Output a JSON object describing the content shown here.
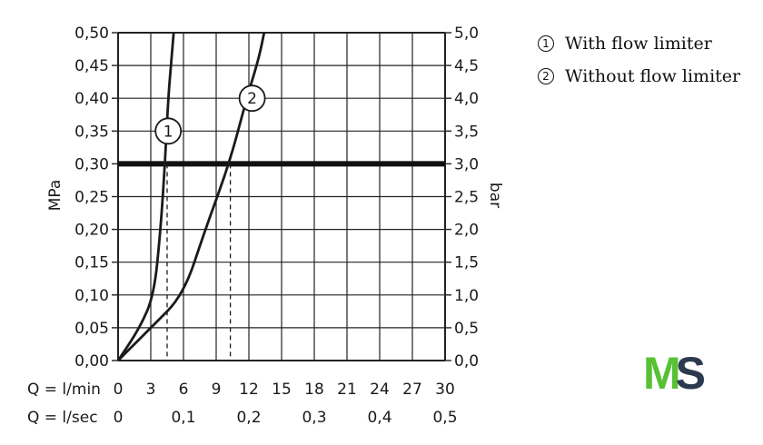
{
  "legend": {
    "items": [
      {
        "num": "1",
        "label": "With flow limiter"
      },
      {
        "num": "2",
        "label": "Without flow limiter"
      }
    ]
  },
  "logo": {
    "m": "M",
    "s": "S",
    "accent": "#58c135",
    "dark": "#2b3a4e"
  },
  "chart_data": {
    "type": "line",
    "title": "",
    "ylabel": "MPa",
    "ylabel_right": "bar",
    "xlabel_rows": [
      {
        "label": "Q = l/min",
        "ticks": [
          "0",
          "3",
          "6",
          "9",
          "12",
          "15",
          "18",
          "21",
          "24",
          "27",
          "30"
        ]
      },
      {
        "label": "Q = l/sec",
        "ticks": [
          "0",
          "0,1",
          "0,2",
          "0,3",
          "0,4",
          "0,5"
        ]
      }
    ],
    "xlim": [
      0,
      30
    ],
    "ylim": [
      0,
      0.5
    ],
    "y_ticks": [
      "0,00",
      "0,05",
      "0,10",
      "0,15",
      "0,20",
      "0,25",
      "0,30",
      "0,35",
      "0,40",
      "0,45",
      "0,50"
    ],
    "y_ticks_right": [
      "0,0",
      "0,5",
      "1,0",
      "1,5",
      "2,0",
      "2,5",
      "3,0",
      "3,5",
      "4,0",
      "4,5",
      "5,0"
    ],
    "grid": true,
    "reference_line": {
      "y": 0.3
    },
    "series": [
      {
        "marker": "1",
        "x": [
          0,
          2.0,
          3.3,
          3.9,
          4.3,
          4.6,
          4.9,
          5.1
        ],
        "y": [
          0,
          0.05,
          0.1,
          0.2,
          0.3,
          0.4,
          0.46,
          0.5
        ],
        "at_reference": 4.5,
        "marker_at": [
          4.6,
          0.35
        ]
      },
      {
        "marker": "2",
        "x": [
          0,
          3.0,
          6.0,
          8.0,
          10.2,
          11.8,
          12.9,
          13.4
        ],
        "y": [
          0,
          0.05,
          0.1,
          0.2,
          0.3,
          0.4,
          0.46,
          0.5
        ],
        "at_reference": 10.3,
        "marker_at": [
          12.3,
          0.4
        ]
      }
    ]
  }
}
